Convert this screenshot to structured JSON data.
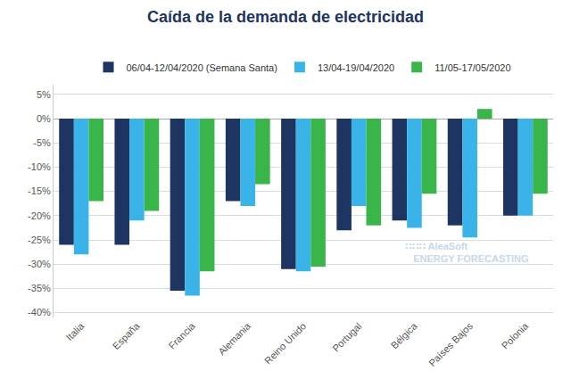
{
  "chart_data": {
    "type": "bar",
    "title": "Caída de la demanda de electricidad",
    "categories": [
      "Italia",
      "España",
      "Francia",
      "Alemania",
      "Reino Unido",
      "Portugal",
      "Bélgica",
      "Países Bajos",
      "Polonia"
    ],
    "series": [
      {
        "name": "06/04-12/04/2020 (Semana Santa)",
        "color": "#1e3461",
        "values": [
          -0.26,
          -0.26,
          -0.355,
          -0.17,
          -0.31,
          -0.23,
          -0.21,
          -0.22,
          -0.2
        ]
      },
      {
        "name": "13/04-19/04/2020",
        "color": "#3ab4e8",
        "values": [
          -0.28,
          -0.21,
          -0.365,
          -0.18,
          -0.315,
          -0.18,
          -0.225,
          -0.245,
          -0.2
        ]
      },
      {
        "name": "11/05-17/05/2020",
        "color": "#3ab54a",
        "values": [
          -0.17,
          -0.19,
          -0.315,
          -0.135,
          -0.305,
          -0.22,
          -0.155,
          0.02,
          -0.155
        ]
      }
    ],
    "ylim": [
      -0.41,
      0.07
    ],
    "yticks": [
      {
        "value": -0.4,
        "label": "-40%"
      },
      {
        "value": -0.35,
        "label": "-35%"
      },
      {
        "value": -0.3,
        "label": "-30%"
      },
      {
        "value": -0.25,
        "label": "-25%"
      },
      {
        "value": -0.2,
        "label": "-20%"
      },
      {
        "value": -0.15,
        "label": "-15%"
      },
      {
        "value": -0.1,
        "label": "-10%"
      },
      {
        "value": -0.05,
        "label": "-5%"
      },
      {
        "value": 0.0,
        "label": "0%"
      },
      {
        "value": 0.05,
        "label": "5%"
      }
    ],
    "grid": true,
    "legend": "top",
    "annotations": [
      "∷∷∷ AleaSoft\n   ENERGY FORECASTING"
    ]
  }
}
